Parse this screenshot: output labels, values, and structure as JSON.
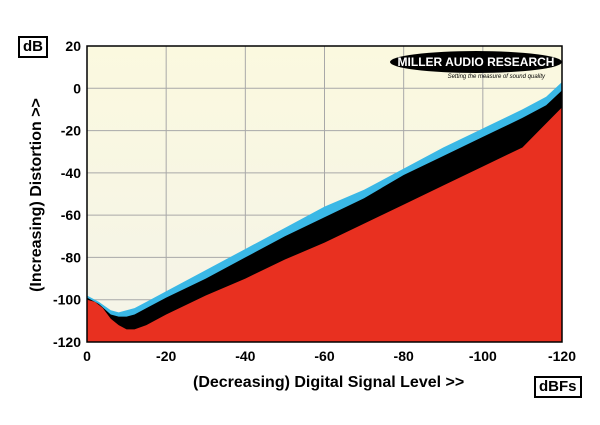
{
  "chart_data": {
    "type": "area",
    "title": "",
    "xlabel": "(Decreasing) Digital Signal Level >>",
    "ylabel": "(Increasing) Distortion >>",
    "x_unit": "dBFs",
    "y_unit": "dB",
    "xlim": [
      0,
      -120
    ],
    "ylim": [
      -120,
      20
    ],
    "xticks": [
      0,
      -20,
      -40,
      -60,
      -80,
      -100,
      -120
    ],
    "yticks": [
      20,
      0,
      -20,
      -40,
      -60,
      -80,
      -100,
      -120
    ],
    "grid": true,
    "logo": {
      "brand": "MILLER AUDIO RESEARCH",
      "tagline": "Setting the measure of sound quality"
    },
    "series": [
      {
        "color": "#3ab8e6",
        "x": [
          0,
          -3,
          -6,
          -8,
          -10,
          -12,
          -15,
          -20,
          -30,
          -40,
          -50,
          -60,
          -70,
          -80,
          -90,
          -100,
          -110,
          -116,
          -120
        ],
        "values": [
          -98,
          -101,
          -105,
          -106,
          -105,
          -104,
          -101,
          -96,
          -86,
          -76,
          -66,
          -56,
          -48,
          -38,
          -28,
          -19,
          -10,
          -4,
          3
        ]
      },
      {
        "color": "#000000",
        "x": [
          0,
          -3,
          -6,
          -8,
          -10,
          -12,
          -15,
          -20,
          -30,
          -40,
          -50,
          -60,
          -70,
          -80,
          -90,
          -100,
          -110,
          -116,
          -120
        ],
        "values": [
          -99,
          -102,
          -107,
          -108,
          -108,
          -107,
          -104,
          -99,
          -90,
          -80,
          -70,
          -61,
          -52,
          -41,
          -32,
          -23,
          -14,
          -8,
          -1
        ]
      },
      {
        "color": "#e83020",
        "x": [
          0,
          -2,
          -4,
          -6,
          -8,
          -10,
          -12,
          -15,
          -20,
          -30,
          -40,
          -50,
          -60,
          -70,
          -80,
          -90,
          -100,
          -110,
          -120
        ],
        "values": [
          -100,
          -101,
          -104,
          -109,
          -112,
          -114,
          -114,
          -112,
          -107,
          -98,
          -90,
          -81,
          -73,
          -64,
          -55,
          -46,
          -37,
          -28,
          -9
        ]
      }
    ]
  }
}
